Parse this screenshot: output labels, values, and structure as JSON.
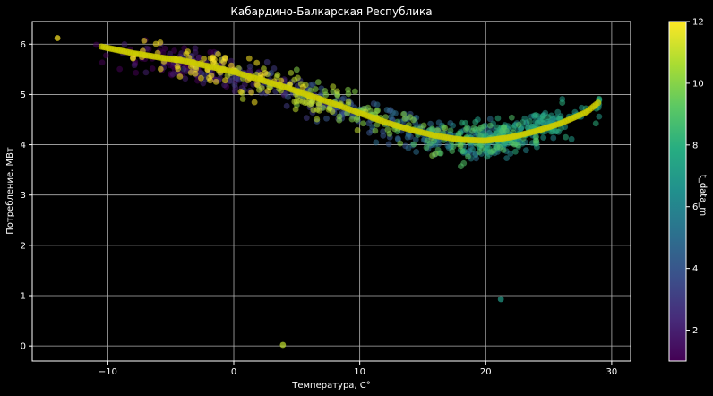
{
  "chart_data": {
    "type": "scatter",
    "title": "Кабардино-Балкарская Республика",
    "xlabel": "Температура, С°",
    "ylabel": "Потребление, МВт",
    "xlim": [
      -16,
      31.5
    ],
    "ylim": [
      -0.3,
      6.45
    ],
    "xticks": [
      -10,
      0,
      10,
      20,
      30
    ],
    "xtick_labels": [
      "−10",
      "0",
      "10",
      "20",
      "30"
    ],
    "yticks": [
      0,
      1,
      2,
      3,
      4,
      5,
      6
    ],
    "ytick_labels": [
      "0",
      "1",
      "2",
      "3",
      "4",
      "5",
      "6"
    ],
    "grid": true,
    "background": "#000000",
    "colorbar": {
      "label": "t_data_m",
      "range": [
        1,
        12
      ],
      "ticks": [
        2,
        4,
        6,
        8,
        10,
        12
      ],
      "tick_labels": [
        "2",
        "4",
        "6",
        "8",
        "10",
        "12"
      ],
      "colormap": "viridis"
    },
    "trend_color": "#cccc00",
    "trend": {
      "x": [
        -10.5,
        -8,
        -6,
        -4,
        -2,
        0,
        2,
        4,
        6,
        8,
        10,
        12,
        14,
        16,
        18,
        20,
        22,
        24,
        26,
        28,
        29
      ],
      "y": [
        5.95,
        5.82,
        5.74,
        5.67,
        5.56,
        5.45,
        5.3,
        5.15,
        4.98,
        4.81,
        4.63,
        4.45,
        4.3,
        4.18,
        4.1,
        4.08,
        4.15,
        4.27,
        4.43,
        4.65,
        4.85
      ]
    },
    "scatter_groups": [
      {
        "month": 1,
        "x_range": [
          -11,
          2
        ],
        "center": [
          -4.2,
          5.6
        ],
        "count": 70
      },
      {
        "month": 2,
        "x_range": [
          -9,
          4
        ],
        "center": [
          -2,
          5.45
        ],
        "count": 70
      },
      {
        "month": 3,
        "x_range": [
          -4,
          9
        ],
        "center": [
          3.2,
          5.05
        ],
        "count": 70
      },
      {
        "month": 4,
        "x_range": [
          2,
          16
        ],
        "center": [
          9.5,
          4.55
        ],
        "count": 70
      },
      {
        "month": 5,
        "x_range": [
          10,
          21
        ],
        "center": [
          15.5,
          4.15
        ],
        "count": 80
      },
      {
        "month": 6,
        "x_range": [
          16,
          26
        ],
        "center": [
          21,
          4.05
        ],
        "count": 90
      },
      {
        "month": 7,
        "x_range": [
          18,
          29
        ],
        "center": [
          23.5,
          4.3
        ],
        "count": 90
      },
      {
        "month": 8,
        "x_range": [
          18,
          29
        ],
        "center": [
          22.5,
          4.25
        ],
        "count": 90
      },
      {
        "month": 9,
        "x_range": [
          13,
          24
        ],
        "center": [
          18.5,
          4.05
        ],
        "count": 80
      },
      {
        "month": 10,
        "x_range": [
          5,
          18
        ],
        "center": [
          11.5,
          4.55
        ],
        "count": 70
      },
      {
        "month": 11,
        "x_range": [
          -3,
          12
        ],
        "center": [
          4,
          5.1
        ],
        "count": 70
      },
      {
        "month": 12,
        "x_range": [
          -8,
          6
        ],
        "center": [
          -1.5,
          5.55
        ],
        "count": 70
      }
    ],
    "outliers": [
      {
        "x": -14,
        "y": 6.12,
        "month": 12
      },
      {
        "x": 3.9,
        "y": 0.02,
        "month": 11
      },
      {
        "x": 21.2,
        "y": 0.93,
        "month": 7
      }
    ]
  }
}
